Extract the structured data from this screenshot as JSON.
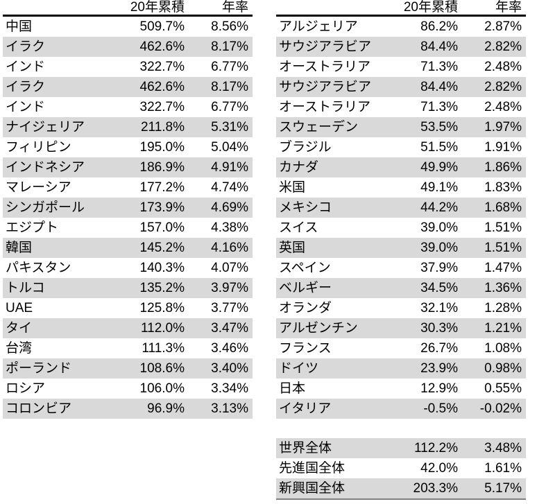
{
  "colors": {
    "background": "#ffffff",
    "stripe": "#d9d9d9",
    "text": "#000000",
    "header_rule": "#000000",
    "bottom_rule": "#7f7f7f"
  },
  "left_table": {
    "header": {
      "cumulative": "20年累積",
      "annual": "年率"
    },
    "rows": [
      {
        "name": "中国",
        "cumulative": "509.7%",
        "annual": "8.56%"
      },
      {
        "name": "イラク",
        "cumulative": "462.6%",
        "annual": "8.17%"
      },
      {
        "name": "インド",
        "cumulative": "322.7%",
        "annual": "6.77%"
      },
      {
        "name": "イラク",
        "cumulative": "462.6%",
        "annual": "8.17%"
      },
      {
        "name": "インド",
        "cumulative": "322.7%",
        "annual": "6.77%"
      },
      {
        "name": "ナイジェリア",
        "cumulative": "211.8%",
        "annual": "5.31%"
      },
      {
        "name": "フィリピン",
        "cumulative": "195.0%",
        "annual": "5.04%"
      },
      {
        "name": "インドネシア",
        "cumulative": "186.9%",
        "annual": "4.91%"
      },
      {
        "name": "マレーシア",
        "cumulative": "177.2%",
        "annual": "4.74%"
      },
      {
        "name": "シンガポール",
        "cumulative": "173.9%",
        "annual": "4.69%"
      },
      {
        "name": "エジプト",
        "cumulative": "157.0%",
        "annual": "4.38%"
      },
      {
        "name": "韓国",
        "cumulative": "145.2%",
        "annual": "4.16%"
      },
      {
        "name": "パキスタン",
        "cumulative": "140.3%",
        "annual": "4.07%"
      },
      {
        "name": "トルコ",
        "cumulative": "135.2%",
        "annual": "3.97%"
      },
      {
        "name": "UAE",
        "cumulative": "125.8%",
        "annual": "3.77%"
      },
      {
        "name": "タイ",
        "cumulative": "112.0%",
        "annual": "3.47%"
      },
      {
        "name": "台湾",
        "cumulative": "111.3%",
        "annual": "3.46%"
      },
      {
        "name": "ポーランド",
        "cumulative": "108.6%",
        "annual": "3.40%"
      },
      {
        "name": "ロシア",
        "cumulative": "106.0%",
        "annual": "3.34%"
      },
      {
        "name": "コロンビア",
        "cumulative": "96.9%",
        "annual": "3.13%"
      }
    ]
  },
  "right_table": {
    "header": {
      "cumulative": "20年累積",
      "annual": "年率"
    },
    "rows": [
      {
        "name": "アルジェリア",
        "cumulative": "86.2%",
        "annual": "2.87%"
      },
      {
        "name": "サウジアラビア",
        "cumulative": "84.4%",
        "annual": "2.82%"
      },
      {
        "name": "オーストラリア",
        "cumulative": "71.3%",
        "annual": "2.48%"
      },
      {
        "name": "サウジアラビア",
        "cumulative": "84.4%",
        "annual": "2.82%"
      },
      {
        "name": "オーストラリア",
        "cumulative": "71.3%",
        "annual": "2.48%"
      },
      {
        "name": "スウェーデン",
        "cumulative": "53.5%",
        "annual": "1.97%"
      },
      {
        "name": "ブラジル",
        "cumulative": "51.5%",
        "annual": "1.91%"
      },
      {
        "name": "カナダ",
        "cumulative": "49.9%",
        "annual": "1.86%"
      },
      {
        "name": "米国",
        "cumulative": "49.1%",
        "annual": "1.83%"
      },
      {
        "name": "メキシコ",
        "cumulative": "44.2%",
        "annual": "1.68%"
      },
      {
        "name": "スイス",
        "cumulative": "39.0%",
        "annual": "1.51%"
      },
      {
        "name": "英国",
        "cumulative": "39.0%",
        "annual": "1.51%"
      },
      {
        "name": "スペイン",
        "cumulative": "37.9%",
        "annual": "1.47%"
      },
      {
        "name": "ベルギー",
        "cumulative": "34.5%",
        "annual": "1.36%"
      },
      {
        "name": "オランダ",
        "cumulative": "32.1%",
        "annual": "1.28%"
      },
      {
        "name": "アルゼンチン",
        "cumulative": "30.3%",
        "annual": "1.21%"
      },
      {
        "name": "フランス",
        "cumulative": "26.7%",
        "annual": "1.08%"
      },
      {
        "name": "ドイツ",
        "cumulative": "23.9%",
        "annual": "0.98%"
      },
      {
        "name": "日本",
        "cumulative": "12.9%",
        "annual": "0.55%"
      },
      {
        "name": "イタリア",
        "cumulative": "-0.5%",
        "annual": "-0.02%"
      }
    ],
    "summary": [
      {
        "name": "世界全体",
        "cumulative": "112.2%",
        "annual": "3.48%"
      },
      {
        "name": "先進国全体",
        "cumulative": "42.0%",
        "annual": "1.61%"
      },
      {
        "name": "新興国全体",
        "cumulative": "203.3%",
        "annual": "5.17%"
      }
    ]
  }
}
